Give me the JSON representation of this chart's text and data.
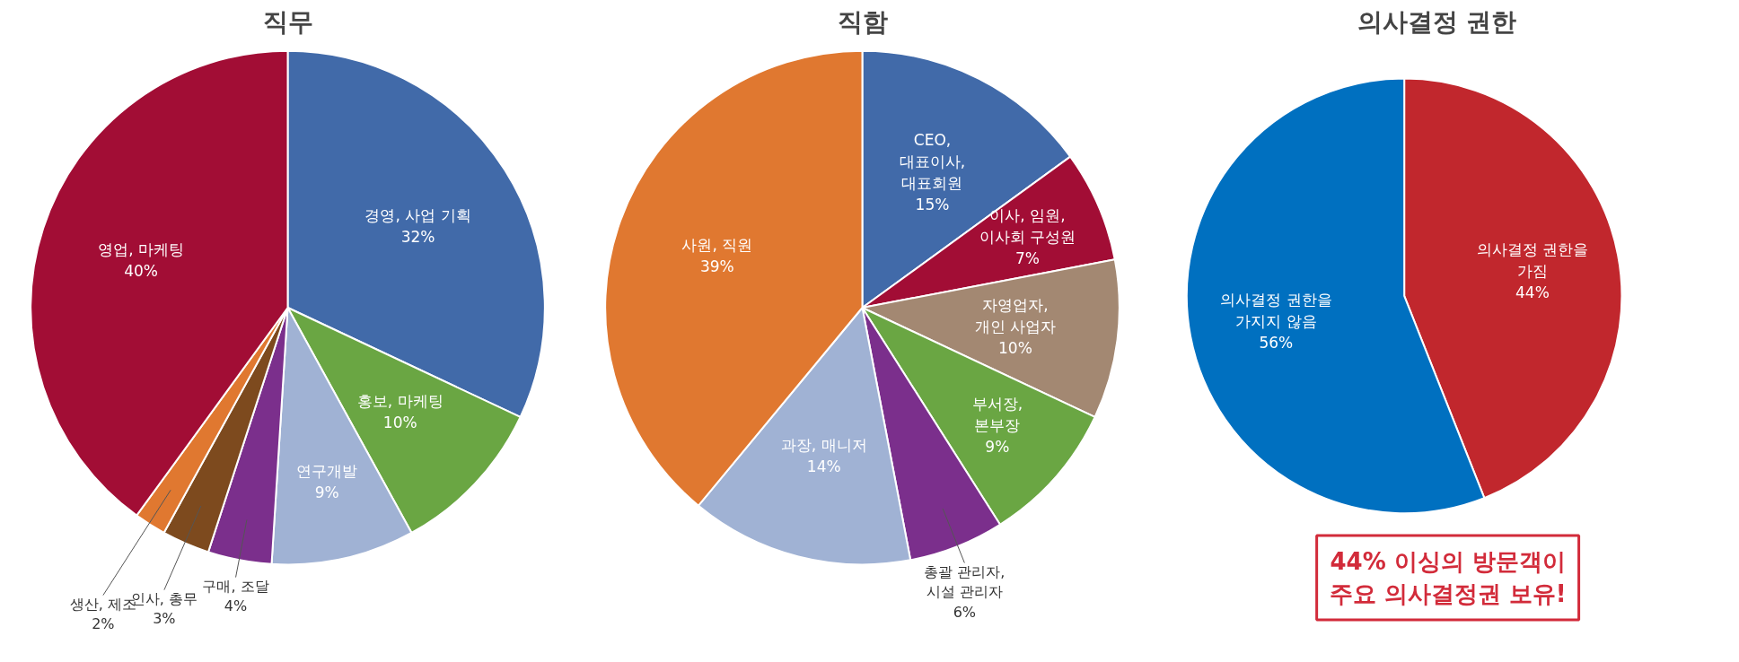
{
  "chart_data": [
    {
      "type": "pie",
      "title": "직무",
      "categories": [
        "경영, 사업 기획",
        "홍보, 마케팅",
        "연구개발",
        "구매, 조달",
        "인사, 총무",
        "생산, 제조",
        "영업, 마케팅"
      ],
      "values": [
        32,
        10,
        9,
        4,
        3,
        2,
        40
      ],
      "colors": [
        "#416aa9",
        "#6aa643",
        "#a0b2d4",
        "#7b2f8c",
        "#7d4a1e",
        "#e07830",
        "#a20d35"
      ],
      "value_labels": [
        "32%",
        "10%",
        "9%",
        "4%",
        "3%",
        "2%",
        "40%"
      ]
    },
    {
      "type": "pie",
      "title": "직함",
      "categories": [
        "CEO,\n대표이사,\n대표회원",
        "이사, 임원,\n이사회 구성원",
        "자영업자,\n개인 사업자",
        "부서장,\n본부장",
        "총괄 관리자,\n시설 관리자",
        "과장, 매니저",
        "사원, 직원"
      ],
      "values": [
        15,
        7,
        10,
        9,
        6,
        14,
        39
      ],
      "colors": [
        "#416aa9",
        "#a20d35",
        "#a38872",
        "#6aa643",
        "#7b2f8c",
        "#a0b2d4",
        "#e07830"
      ],
      "value_labels": [
        "15%",
        "7%",
        "10%",
        "9%",
        "6%",
        "14%",
        "39%"
      ]
    },
    {
      "type": "pie",
      "title": "의사결정 권한",
      "categories": [
        "의사결정 권한을\n가짐",
        "의사결정 권한을\n가지지 않음"
      ],
      "values": [
        44,
        56
      ],
      "colors": [
        "#c1272d",
        "#0070c0"
      ],
      "value_labels": [
        "44%",
        "56%"
      ],
      "annotations": [
        "44% 이싱의 방문객이\n주요 의사결정권 보유!"
      ]
    }
  ]
}
